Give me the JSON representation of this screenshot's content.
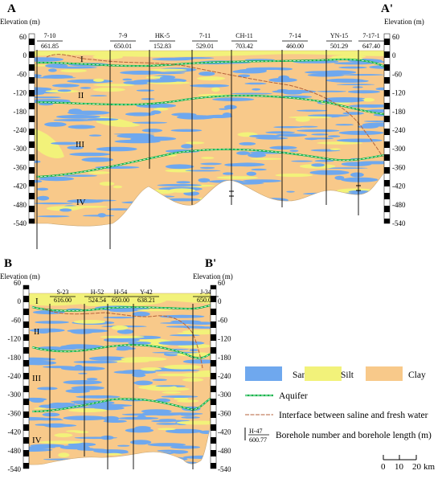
{
  "sections": [
    {
      "id": "AA",
      "start_label": "A",
      "end_label": "A'",
      "axis_title_left": "Elevation (m)",
      "axis_title_right": "Elevation (m)",
      "ticks": [
        "60",
        "0",
        "-60",
        "-120",
        "-180",
        "-240",
        "-300",
        "-360",
        "-420",
        "-480",
        "-540"
      ],
      "layers": [
        "I",
        "II",
        "III",
        "IV"
      ],
      "boreholes": [
        {
          "name": "7-10",
          "length": "661.85"
        },
        {
          "name": "7-9",
          "length": "650.01"
        },
        {
          "name": "HK-5",
          "length": "152.83"
        },
        {
          "name": "7-11",
          "length": "529.01"
        },
        {
          "name": "CH-11",
          "length": "703.42"
        },
        {
          "name": "7-14",
          "length": "460.00"
        },
        {
          "name": "YN-15",
          "length": "501.29"
        },
        {
          "name": "7-17-1",
          "length": "647.40"
        }
      ]
    },
    {
      "id": "BB",
      "start_label": "B",
      "end_label": "B'",
      "axis_title_left": "Elevation (m)",
      "axis_title_right": "Elevation (m)",
      "ticks": [
        "60",
        "0",
        "-60",
        "-120",
        "-180",
        "-240",
        "-300",
        "-360",
        "-420",
        "-480",
        "-540"
      ],
      "layers": [
        "I",
        "II",
        "III",
        "IV"
      ],
      "boreholes": [
        {
          "name": "S-23",
          "length": "616.00"
        },
        {
          "name": "H-52",
          "length": "524.54"
        },
        {
          "name": "H-54",
          "length": "650.00"
        },
        {
          "name": "Y-42",
          "length": "638.21"
        },
        {
          "name": "J-34",
          "length": "650.09"
        }
      ]
    }
  ],
  "legend": {
    "sand": "Sand",
    "silt": "Silt",
    "clay": "Clay",
    "aquifer": "Aquifer",
    "interface": "Interface between saline and fresh water",
    "sample_name": "H-47",
    "sample_length": "600.77",
    "borehole": "Borehole number and borehole length (m)"
  },
  "scale": {
    "t0": "0",
    "t1": "10",
    "t2": "20",
    "unit": "km"
  },
  "colors": {
    "sand": "#6fa8ee",
    "silt": "#f2f27a",
    "clay": "#f8c98a",
    "aquifer": "#18b54c",
    "interface": "#b5623a"
  }
}
